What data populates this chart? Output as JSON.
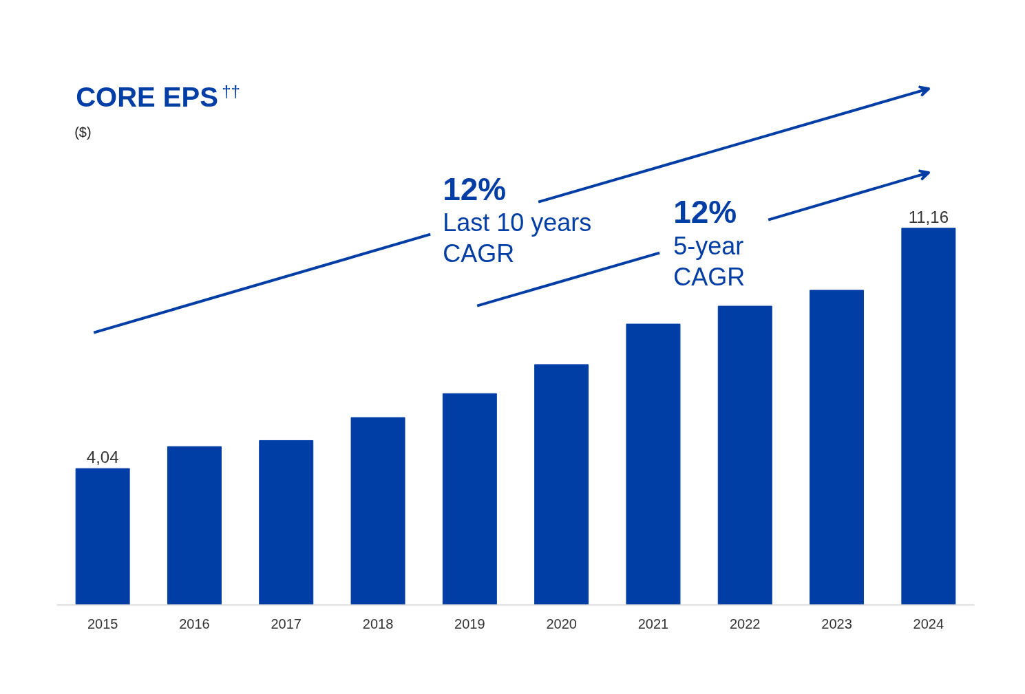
{
  "chart_data": {
    "type": "bar",
    "title": "CORE EPS$^{††}$",
    "subtitle": "($)",
    "categories": [
      "2015",
      "2016",
      "2017",
      "2018",
      "2019",
      "2020",
      "2021",
      "2022",
      "2023",
      "2024"
    ],
    "values": [
      4.04,
      4.69,
      4.87,
      5.55,
      6.26,
      7.12,
      8.32,
      8.85,
      9.32,
      11.16
    ],
    "value_labels": [
      "4,04",
      null,
      null,
      null,
      null,
      null,
      null,
      null,
      null,
      "11,16"
    ],
    "color": "#003da5",
    "annotations": [
      "12%",
      "Last 10 years",
      "CAGR",
      "12%",
      "5-year",
      "CAGR"
    ],
    "grid": false
  }
}
